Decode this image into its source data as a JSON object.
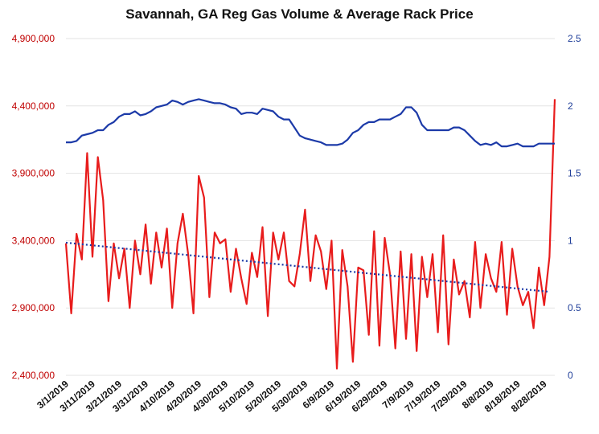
{
  "colors": {
    "volume": "#e81c1c",
    "price": "#1c3aa8",
    "trend": "#1c3aa8",
    "left_axis": "#c00000",
    "right_axis": "#1f3e99"
  },
  "chart_data": {
    "type": "line",
    "title": "Savannah, GA Reg Gas Volume & Average Rack Price",
    "grid": true,
    "legend": "none",
    "y_left": {
      "ylim": [
        2400000,
        4900000
      ],
      "ticks": [
        "2,400,000",
        "2,900,000",
        "3,400,000",
        "3,900,000",
        "4,400,000",
        "4,900,000"
      ]
    },
    "y_right": {
      "ylim": [
        0,
        2.5
      ],
      "ticks": [
        "0",
        "0.5",
        "1",
        "1.5",
        "2",
        "2.5"
      ]
    },
    "x_tick_labels": [
      "3/1/2019",
      "3/11/2019",
      "3/21/2019",
      "3/31/2019",
      "4/10/2019",
      "4/20/2019",
      "4/30/2019",
      "5/10/2019",
      "5/20/2019",
      "5/30/2019",
      "6/9/2019",
      "6/19/2019",
      "6/29/2019",
      "7/9/2019",
      "7/19/2019",
      "7/29/2019",
      "8/8/2019",
      "8/18/2019",
      "8/28/2019"
    ],
    "x_range": [
      "3/1/2019",
      "9/1/2019"
    ],
    "series": [
      {
        "axis": "left",
        "x": [
          "3/1/2019",
          "3/3/2019",
          "3/5/2019",
          "3/7/2019",
          "3/9/2019",
          "3/11/2019",
          "3/13/2019",
          "3/15/2019",
          "3/17/2019",
          "3/19/2019",
          "3/21/2019",
          "3/23/2019",
          "3/25/2019",
          "3/27/2019",
          "3/29/2019",
          "3/31/2019",
          "4/2/2019",
          "4/4/2019",
          "4/6/2019",
          "4/8/2019",
          "4/10/2019",
          "4/12/2019",
          "4/14/2019",
          "4/16/2019",
          "4/18/2019",
          "4/20/2019",
          "4/22/2019",
          "4/24/2019",
          "4/26/2019",
          "4/28/2019",
          "4/30/2019",
          "5/2/2019",
          "5/4/2019",
          "5/6/2019",
          "5/8/2019",
          "5/10/2019",
          "5/12/2019",
          "5/14/2019",
          "5/16/2019",
          "5/18/2019",
          "5/20/2019",
          "5/22/2019",
          "5/24/2019",
          "5/26/2019",
          "5/28/2019",
          "5/30/2019",
          "6/1/2019",
          "6/3/2019",
          "6/5/2019",
          "6/7/2019",
          "6/9/2019",
          "6/11/2019",
          "6/13/2019",
          "6/15/2019",
          "6/17/2019",
          "6/19/2019",
          "6/21/2019",
          "6/23/2019",
          "6/25/2019",
          "6/27/2019",
          "6/29/2019",
          "7/1/2019",
          "7/3/2019",
          "7/5/2019",
          "7/7/2019",
          "7/9/2019",
          "7/11/2019",
          "7/13/2019",
          "7/15/2019",
          "7/17/2019",
          "7/19/2019",
          "7/21/2019",
          "7/23/2019",
          "7/25/2019",
          "7/27/2019",
          "7/29/2019",
          "7/31/2019",
          "8/2/2019",
          "8/4/2019",
          "8/6/2019",
          "8/8/2019",
          "8/10/2019",
          "8/12/2019",
          "8/14/2019",
          "8/16/2019",
          "8/18/2019",
          "8/20/2019",
          "8/22/2019",
          "8/24/2019",
          "8/26/2019",
          "8/28/2019",
          "8/30/2019",
          "9/1/2019"
        ],
        "values": [
          3380000,
          2860000,
          3450000,
          3260000,
          4050000,
          3280000,
          4020000,
          3700000,
          2950000,
          3380000,
          3120000,
          3340000,
          2900000,
          3400000,
          3150000,
          3520000,
          3080000,
          3460000,
          3200000,
          3490000,
          2900000,
          3380000,
          3600000,
          3300000,
          2860000,
          3880000,
          3720000,
          2980000,
          3460000,
          3380000,
          3410000,
          3020000,
          3340000,
          3120000,
          2930000,
          3310000,
          3130000,
          3500000,
          2840000,
          3460000,
          3260000,
          3460000,
          3100000,
          3060000,
          3300000,
          3630000,
          3100000,
          3440000,
          3320000,
          3040000,
          3400000,
          2450000,
          3330000,
          3060000,
          2500000,
          3200000,
          3180000,
          2700000,
          3470000,
          2620000,
          3420000,
          3150000,
          2600000,
          3320000,
          2670000,
          3300000,
          2580000,
          3280000,
          2980000,
          3300000,
          2720000,
          3440000,
          2630000,
          3260000,
          3000000,
          3100000,
          2830000,
          3390000,
          2900000,
          3300000,
          3120000,
          3020000,
          3390000,
          2850000,
          3340000,
          3060000,
          2920000,
          3020000,
          2750000,
          3200000,
          2920000,
          3280000,
          4450000
        ],
        "trend": [
          3385000,
          3020000
        ]
      },
      {
        "axis": "right",
        "x": [
          "3/1/2019",
          "3/3/2019",
          "3/5/2019",
          "3/7/2019",
          "3/9/2019",
          "3/11/2019",
          "3/13/2019",
          "3/15/2019",
          "3/17/2019",
          "3/19/2019",
          "3/21/2019",
          "3/23/2019",
          "3/25/2019",
          "3/27/2019",
          "3/29/2019",
          "3/31/2019",
          "4/2/2019",
          "4/4/2019",
          "4/6/2019",
          "4/8/2019",
          "4/10/2019",
          "4/12/2019",
          "4/14/2019",
          "4/16/2019",
          "4/18/2019",
          "4/20/2019",
          "4/22/2019",
          "4/24/2019",
          "4/26/2019",
          "4/28/2019",
          "4/30/2019",
          "5/2/2019",
          "5/4/2019",
          "5/6/2019",
          "5/8/2019",
          "5/10/2019",
          "5/12/2019",
          "5/14/2019",
          "5/16/2019",
          "5/18/2019",
          "5/20/2019",
          "5/22/2019",
          "5/24/2019",
          "5/26/2019",
          "5/28/2019",
          "5/30/2019",
          "6/1/2019",
          "6/3/2019",
          "6/5/2019",
          "6/7/2019",
          "6/9/2019",
          "6/11/2019",
          "6/13/2019",
          "6/15/2019",
          "6/17/2019",
          "6/19/2019",
          "6/21/2019",
          "6/23/2019",
          "6/25/2019",
          "6/27/2019",
          "6/29/2019",
          "7/1/2019",
          "7/3/2019",
          "7/5/2019",
          "7/7/2019",
          "7/9/2019",
          "7/11/2019",
          "7/13/2019",
          "7/15/2019",
          "7/17/2019",
          "7/19/2019",
          "7/21/2019",
          "7/23/2019",
          "7/25/2019",
          "7/27/2019",
          "7/29/2019",
          "7/31/2019",
          "8/2/2019",
          "8/4/2019",
          "8/6/2019",
          "8/8/2019",
          "8/10/2019",
          "8/12/2019",
          "8/14/2019",
          "8/16/2019",
          "8/18/2019",
          "8/20/2019",
          "8/22/2019",
          "8/24/2019",
          "8/26/2019",
          "8/28/2019",
          "8/30/2019",
          "9/1/2019"
        ],
        "values": [
          1.73,
          1.73,
          1.74,
          1.78,
          1.79,
          1.8,
          1.82,
          1.82,
          1.86,
          1.88,
          1.92,
          1.94,
          1.94,
          1.96,
          1.93,
          1.94,
          1.96,
          1.99,
          2.0,
          2.01,
          2.04,
          2.03,
          2.01,
          2.03,
          2.04,
          2.05,
          2.04,
          2.03,
          2.02,
          2.02,
          2.01,
          1.99,
          1.98,
          1.94,
          1.95,
          1.95,
          1.94,
          1.98,
          1.97,
          1.96,
          1.92,
          1.9,
          1.9,
          1.84,
          1.78,
          1.76,
          1.75,
          1.74,
          1.73,
          1.71,
          1.71,
          1.71,
          1.72,
          1.75,
          1.8,
          1.82,
          1.86,
          1.88,
          1.88,
          1.9,
          1.9,
          1.9,
          1.92,
          1.94,
          1.99,
          1.99,
          1.95,
          1.86,
          1.82,
          1.82,
          1.82,
          1.82,
          1.82,
          1.84,
          1.84,
          1.82,
          1.78,
          1.74,
          1.71,
          1.72,
          1.71,
          1.73,
          1.7,
          1.7,
          1.71,
          1.72,
          1.7,
          1.7,
          1.7,
          1.72,
          1.72,
          1.72,
          1.72
        ]
      }
    ]
  }
}
